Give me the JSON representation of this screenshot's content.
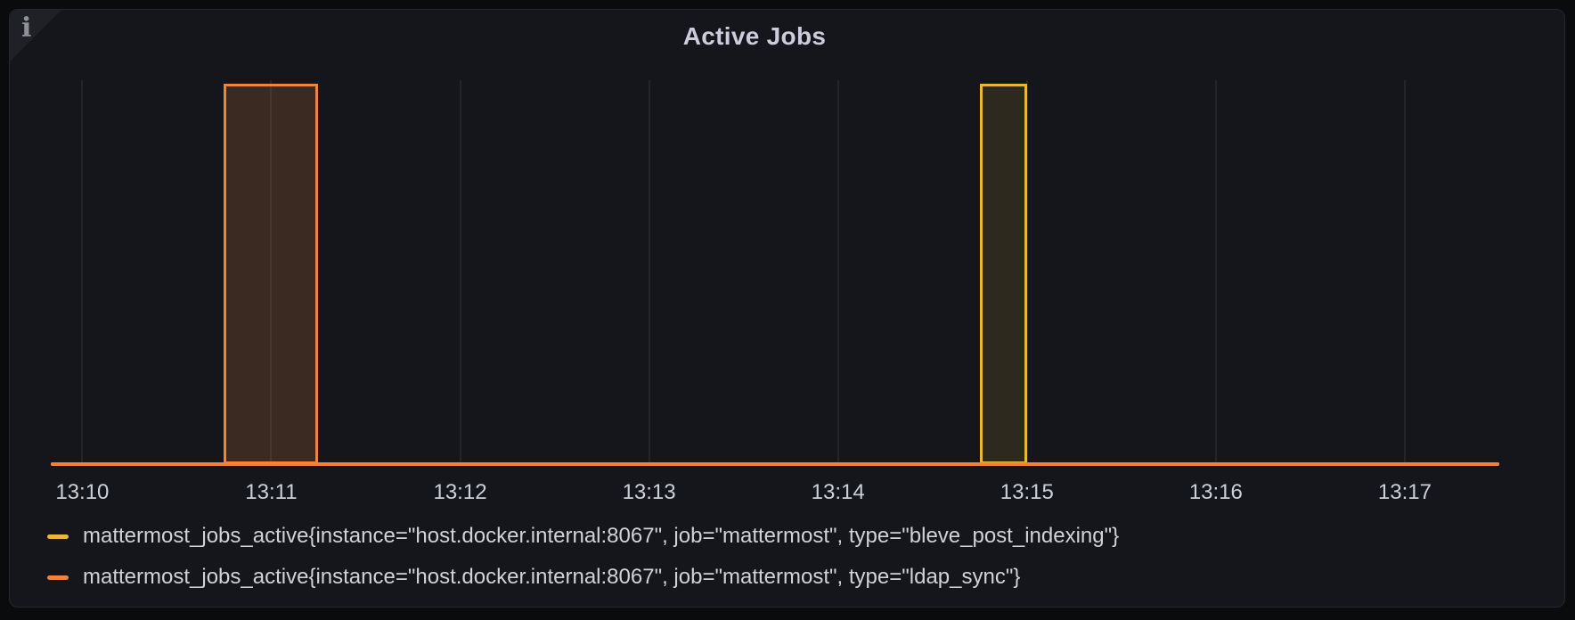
{
  "panel": {
    "title": "Active Jobs",
    "info_icon_glyph": "i"
  },
  "colors": {
    "page_background": "#0a0b0d",
    "panel_background": "#14161b",
    "panel_border": "#25272e",
    "grid": "#23252b",
    "text": "#ccccdc",
    "series_yellow": "#EAB839",
    "series_orange": "#EF843C"
  },
  "chart_data": {
    "type": "bar",
    "title": "Active Jobs",
    "grid": "vertical-only",
    "legend_position": "bottom-left",
    "y_range": [
      0,
      1.02
    ],
    "x_axis": {
      "start": "13:09:50",
      "end": "13:17:30",
      "ticks": [
        "13:10",
        "13:11",
        "13:12",
        "13:13",
        "13:14",
        "13:15",
        "13:16",
        "13:17"
      ]
    },
    "series": [
      {
        "name": "mattermost_jobs_active{instance=\"host.docker.internal:8067\", job=\"mattermost\", type=\"bleve_post_indexing\"}",
        "color": "#EAB839",
        "fill_opacity": 0.12,
        "baseline_value": 0,
        "intervals": [
          {
            "start": "13:14:45",
            "end": "13:15:00",
            "value": 1
          }
        ]
      },
      {
        "name": "mattermost_jobs_active{instance=\"host.docker.internal:8067\", job=\"mattermost\", type=\"ldap_sync\"}",
        "color": "#EF843C",
        "fill_opacity": 0.18,
        "baseline_value": 0,
        "intervals": [
          {
            "start": "13:10:45",
            "end": "13:11:15",
            "value": 1
          }
        ]
      }
    ]
  }
}
